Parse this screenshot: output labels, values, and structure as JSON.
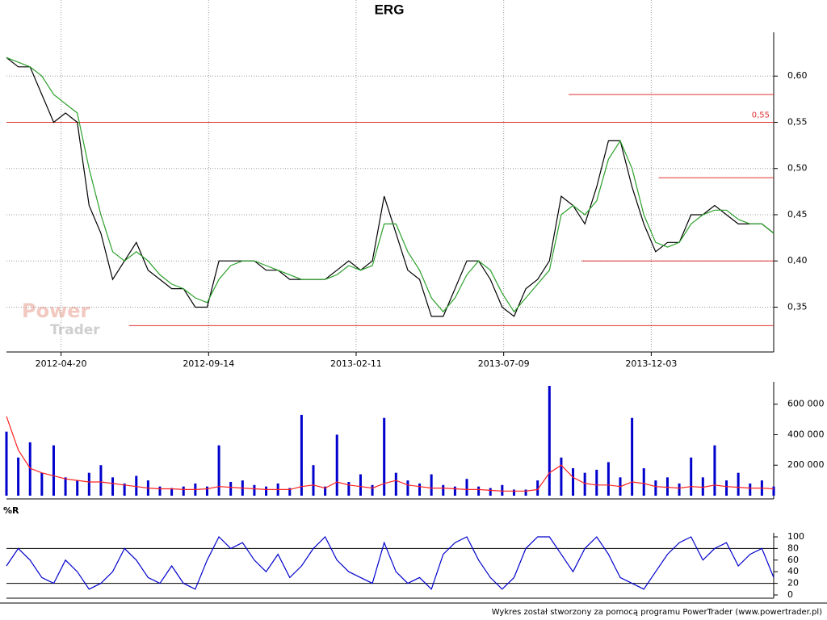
{
  "chart_data": [
    {
      "type": "line",
      "title": "ERG",
      "watermark": [
        "Power",
        "Trader"
      ],
      "x": [
        0,
        8,
        16,
        24,
        32,
        40,
        48,
        56,
        64,
        72,
        80,
        88,
        96,
        104,
        112,
        120,
        128,
        136,
        144,
        152,
        160,
        168,
        176,
        184,
        192,
        200,
        208,
        216,
        224,
        232,
        240,
        248,
        256,
        264,
        272,
        280,
        288,
        296,
        304,
        312,
        320,
        328,
        336,
        344,
        352,
        360,
        368,
        376,
        384,
        392,
        400,
        408,
        416,
        424,
        432,
        440,
        448,
        456,
        464,
        472,
        480,
        488,
        496,
        504,
        512,
        520
      ],
      "xlim": [
        0,
        520
      ],
      "xticks": [
        {
          "value": 37,
          "label": "2012-04-20"
        },
        {
          "value": 137,
          "label": "2012-09-14"
        },
        {
          "value": 237,
          "label": "2013-02-11"
        },
        {
          "value": 337,
          "label": "2013-07-09"
        },
        {
          "value": 437,
          "label": "2013-12-03"
        }
      ],
      "ylim": [
        0.305,
        0.643
      ],
      "yticks": [
        {
          "value": 0.35,
          "label": "0,35"
        },
        {
          "value": 0.4,
          "label": "0,40"
        },
        {
          "value": 0.45,
          "label": "0,45"
        },
        {
          "value": 0.5,
          "label": "0,50"
        },
        {
          "value": 0.55,
          "label": "0,55"
        },
        {
          "value": 0.6,
          "label": "0,60"
        }
      ],
      "grid": true,
      "series": [
        {
          "color": "#000000",
          "values": [
            0.62,
            0.61,
            0.61,
            0.58,
            0.55,
            0.56,
            0.55,
            0.46,
            0.43,
            0.38,
            0.4,
            0.42,
            0.39,
            0.38,
            0.37,
            0.37,
            0.35,
            0.35,
            0.4,
            0.4,
            0.4,
            0.4,
            0.39,
            0.39,
            0.38,
            0.38,
            0.38,
            0.38,
            0.39,
            0.4,
            0.39,
            0.4,
            0.47,
            0.43,
            0.39,
            0.38,
            0.34,
            0.34,
            0.37,
            0.4,
            0.4,
            0.38,
            0.35,
            0.34,
            0.37,
            0.38,
            0.4,
            0.47,
            0.46,
            0.44,
            0.48,
            0.53,
            0.53,
            0.48,
            0.44,
            0.41,
            0.42,
            0.42,
            0.45,
            0.45,
            0.46,
            0.45,
            0.44,
            0.44,
            0.44,
            0.43
          ]
        },
        {
          "color": "#2ca02c",
          "values": [
            0.62,
            0.615,
            0.61,
            0.6,
            0.58,
            0.57,
            0.56,
            0.5,
            0.45,
            0.41,
            0.4,
            0.41,
            0.4,
            0.385,
            0.375,
            0.37,
            0.36,
            0.355,
            0.38,
            0.395,
            0.4,
            0.4,
            0.395,
            0.39,
            0.385,
            0.38,
            0.38,
            0.38,
            0.385,
            0.395,
            0.39,
            0.395,
            0.44,
            0.44,
            0.41,
            0.39,
            0.36,
            0.345,
            0.36,
            0.385,
            0.4,
            0.39,
            0.365,
            0.345,
            0.36,
            0.375,
            0.39,
            0.45,
            0.46,
            0.45,
            0.465,
            0.51,
            0.53,
            0.5,
            0.45,
            0.42,
            0.415,
            0.42,
            0.44,
            0.45,
            0.455,
            0.455,
            0.445,
            0.44,
            0.44,
            0.43
          ]
        }
      ],
      "hlines": [
        {
          "value": 0.55,
          "from": 0,
          "to": 520,
          "color": "#e03030",
          "label": "0,55"
        },
        {
          "value": 0.58,
          "from": 381,
          "to": 520,
          "color": "#e03030"
        },
        {
          "value": 0.49,
          "from": 442,
          "to": 520,
          "color": "#e03030"
        },
        {
          "value": 0.4,
          "from": 390,
          "to": 520,
          "color": "#e03030"
        },
        {
          "value": 0.33,
          "from": 83,
          "to": 520,
          "color": "#e03030"
        }
      ]
    },
    {
      "type": "bar",
      "x": [
        0,
        8,
        16,
        24,
        32,
        40,
        48,
        56,
        64,
        72,
        80,
        88,
        96,
        104,
        112,
        120,
        128,
        136,
        144,
        152,
        160,
        168,
        176,
        184,
        192,
        200,
        208,
        216,
        224,
        232,
        240,
        248,
        256,
        264,
        272,
        280,
        288,
        296,
        304,
        312,
        320,
        328,
        336,
        344,
        352,
        360,
        368,
        376,
        384,
        392,
        400,
        408,
        416,
        424,
        432,
        440,
        448,
        456,
        464,
        472,
        480,
        488,
        496,
        504,
        512,
        520
      ],
      "xlim": [
        0,
        520
      ],
      "ylim": [
        0,
        720000
      ],
      "yticks": [
        {
          "value": 200000,
          "label": "200 000"
        },
        {
          "value": 400000,
          "label": "400 000"
        },
        {
          "value": 600000,
          "label": "600 000"
        }
      ],
      "series": [
        {
          "style": "bar",
          "color": "#0000cc",
          "values": [
            420000,
            250000,
            350000,
            150000,
            330000,
            120000,
            100000,
            150000,
            200000,
            120000,
            80000,
            130000,
            100000,
            60000,
            50000,
            60000,
            80000,
            60000,
            330000,
            90000,
            100000,
            70000,
            60000,
            80000,
            50000,
            530000,
            200000,
            60000,
            400000,
            90000,
            140000,
            70000,
            510000,
            150000,
            100000,
            80000,
            140000,
            70000,
            60000,
            110000,
            60000,
            50000,
            70000,
            40000,
            40000,
            100000,
            720000,
            250000,
            180000,
            150000,
            170000,
            220000,
            120000,
            510000,
            180000,
            100000,
            120000,
            80000,
            250000,
            120000,
            330000,
            100000,
            150000,
            80000,
            100000,
            60000
          ]
        },
        {
          "style": "line",
          "color": "#ff2020",
          "values": [
            520000,
            300000,
            180000,
            150000,
            130000,
            110000,
            100000,
            90000,
            90000,
            80000,
            70000,
            60000,
            50000,
            45000,
            45000,
            40000,
            40000,
            45000,
            60000,
            55000,
            50000,
            45000,
            40000,
            40000,
            40000,
            60000,
            70000,
            50000,
            90000,
            70000,
            60000,
            50000,
            80000,
            100000,
            70000,
            60000,
            50000,
            50000,
            45000,
            40000,
            40000,
            35000,
            30000,
            30000,
            30000,
            40000,
            150000,
            200000,
            120000,
            80000,
            70000,
            70000,
            60000,
            90000,
            80000,
            60000,
            55000,
            50000,
            60000,
            55000,
            70000,
            60000,
            55000,
            50000,
            50000,
            45000
          ]
        }
      ]
    },
    {
      "type": "line",
      "title": "%R",
      "x": [
        0,
        8,
        16,
        24,
        32,
        40,
        48,
        56,
        64,
        72,
        80,
        88,
        96,
        104,
        112,
        120,
        128,
        136,
        144,
        152,
        160,
        168,
        176,
        184,
        192,
        200,
        208,
        216,
        224,
        232,
        240,
        248,
        256,
        264,
        272,
        280,
        288,
        296,
        304,
        312,
        320,
        328,
        336,
        344,
        352,
        360,
        368,
        376,
        384,
        392,
        400,
        408,
        416,
        424,
        432,
        440,
        448,
        456,
        464,
        472,
        480,
        488,
        496,
        504,
        512,
        520
      ],
      "xlim": [
        0,
        520
      ],
      "ylim": [
        0,
        100
      ],
      "yticks": [
        0,
        20,
        40,
        60,
        80,
        100
      ],
      "series": [
        {
          "color": "#0000cc",
          "values": [
            50,
            80,
            60,
            30,
            20,
            60,
            40,
            10,
            20,
            40,
            80,
            60,
            30,
            20,
            50,
            20,
            10,
            60,
            100,
            80,
            90,
            60,
            40,
            70,
            30,
            50,
            80,
            100,
            60,
            40,
            30,
            20,
            90,
            40,
            20,
            30,
            10,
            70,
            90,
            100,
            60,
            30,
            10,
            30,
            80,
            100,
            100,
            70,
            40,
            80,
            100,
            70,
            30,
            20,
            10,
            40,
            70,
            90,
            100,
            60,
            80,
            90,
            50,
            70,
            80,
            30
          ]
        }
      ],
      "hlines": [
        {
          "value": 80,
          "from": 0,
          "to": 520,
          "color": "#000000"
        },
        {
          "value": 20,
          "from": 0,
          "to": 520,
          "color": "#000000"
        }
      ]
    }
  ],
  "footer": "Wykres został stworzony za pomocą programu PowerTrader (www.powertrader.pl)"
}
